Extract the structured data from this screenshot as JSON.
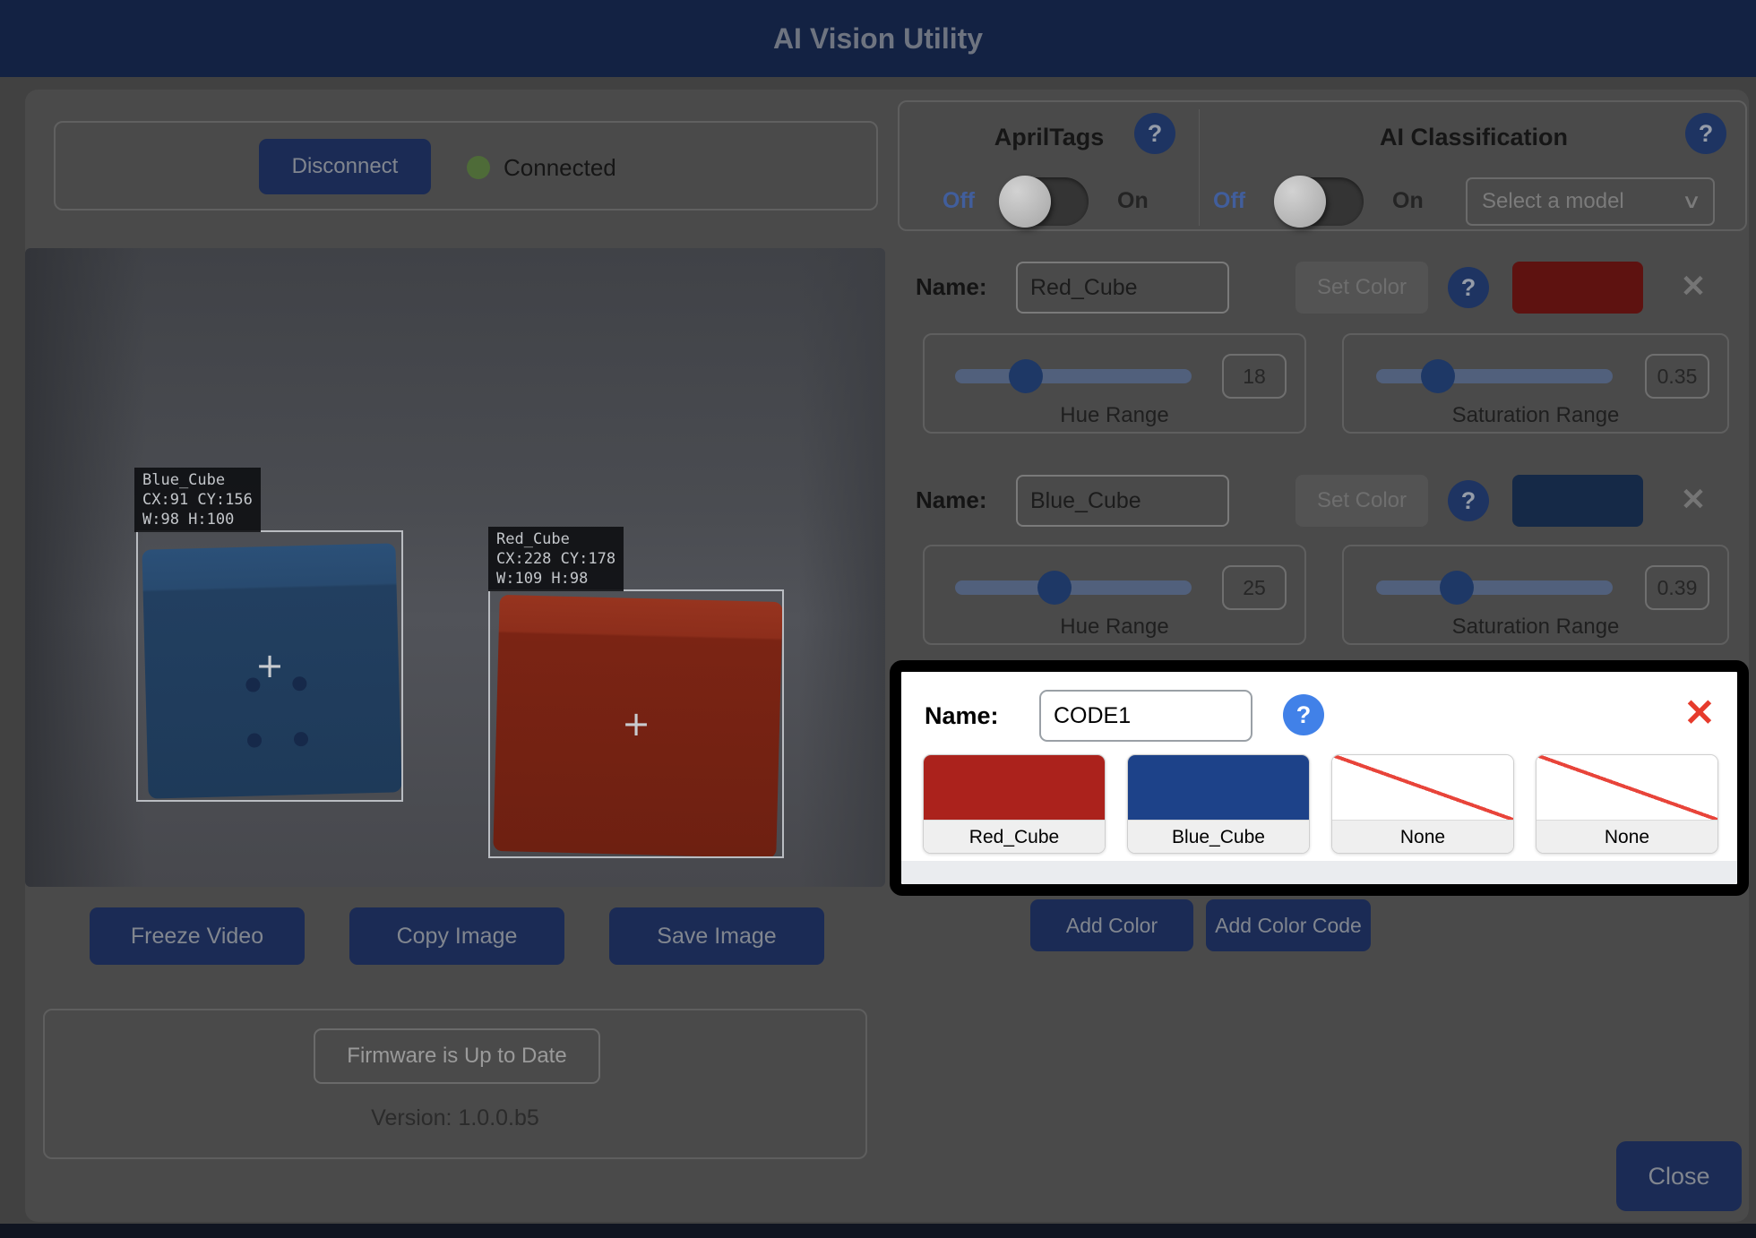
{
  "header": {
    "title": "AI Vision Utility"
  },
  "connection": {
    "button": "Disconnect",
    "status": "Connected"
  },
  "features": {
    "apriltags": {
      "title": "AprilTags",
      "off": "Off",
      "on": "On",
      "state": "Off"
    },
    "ai_classification": {
      "title": "AI Classification",
      "off": "Off",
      "on": "On",
      "state": "Off",
      "model_select": "Select a model"
    }
  },
  "colors": [
    {
      "name_label": "Name:",
      "name": "Red_Cube",
      "set_color": "Set Color",
      "swatch": "#5e1210",
      "hue": {
        "label": "Hue Range",
        "value": "18",
        "pct": 30
      },
      "sat": {
        "label": "Saturation Range",
        "value": "0.35",
        "pct": 26
      }
    },
    {
      "name_label": "Name:",
      "name": "Blue_Cube",
      "set_color": "Set Color",
      "swatch": "#152947",
      "hue": {
        "label": "Hue Range",
        "value": "25",
        "pct": 42
      },
      "sat": {
        "label": "Saturation Range",
        "value": "0.39",
        "pct": 34
      }
    }
  ],
  "color_code": {
    "name_label": "Name:",
    "name": "CODE1",
    "slots": [
      {
        "label": "Red_Cube",
        "color": "#ab221c"
      },
      {
        "label": "Blue_Cube",
        "color": "#1d4289"
      },
      {
        "label": "None",
        "color": ""
      },
      {
        "label": "None",
        "color": ""
      }
    ]
  },
  "video": {
    "detections": [
      {
        "name": "Blue_Cube",
        "position": "CX:91 CY:156",
        "size": "W:98 H:100"
      },
      {
        "name": "Red_Cube",
        "position": "CX:228 CY:178",
        "size": "W:109 H:98"
      }
    ],
    "buttons": {
      "freeze": "Freeze Video",
      "copy": "Copy Image",
      "save": "Save Image"
    }
  },
  "firmware": {
    "button": "Firmware is Up to Date",
    "version": "Version: 1.0.0.b5"
  },
  "actions": {
    "add_color": "Add Color",
    "add_color_code": "Add Color Code",
    "close": "Close"
  },
  "icons": {
    "help": "?",
    "close": "✕",
    "chevron": "∨",
    "cross": "+"
  },
  "theme": {
    "header_bg": "#132243",
    "navy_button": "#1b2b55",
    "navy_button_text": "#81868f",
    "connected_dot": "#4e6b38",
    "toggle_off_text": "#415e9c",
    "slider_track": "#51607c",
    "slider_thumb": "#1e3866",
    "help_badge_dim": "#1e3462",
    "help_badge_bright": "#4181e8",
    "close_x_red": "#e63b2c",
    "none_diagonal": "#e8443a",
    "code_red": "#ab221c",
    "code_blue": "#1d4289",
    "swatch_red_dim": "#5e1210",
    "swatch_blue_dim": "#152947"
  }
}
